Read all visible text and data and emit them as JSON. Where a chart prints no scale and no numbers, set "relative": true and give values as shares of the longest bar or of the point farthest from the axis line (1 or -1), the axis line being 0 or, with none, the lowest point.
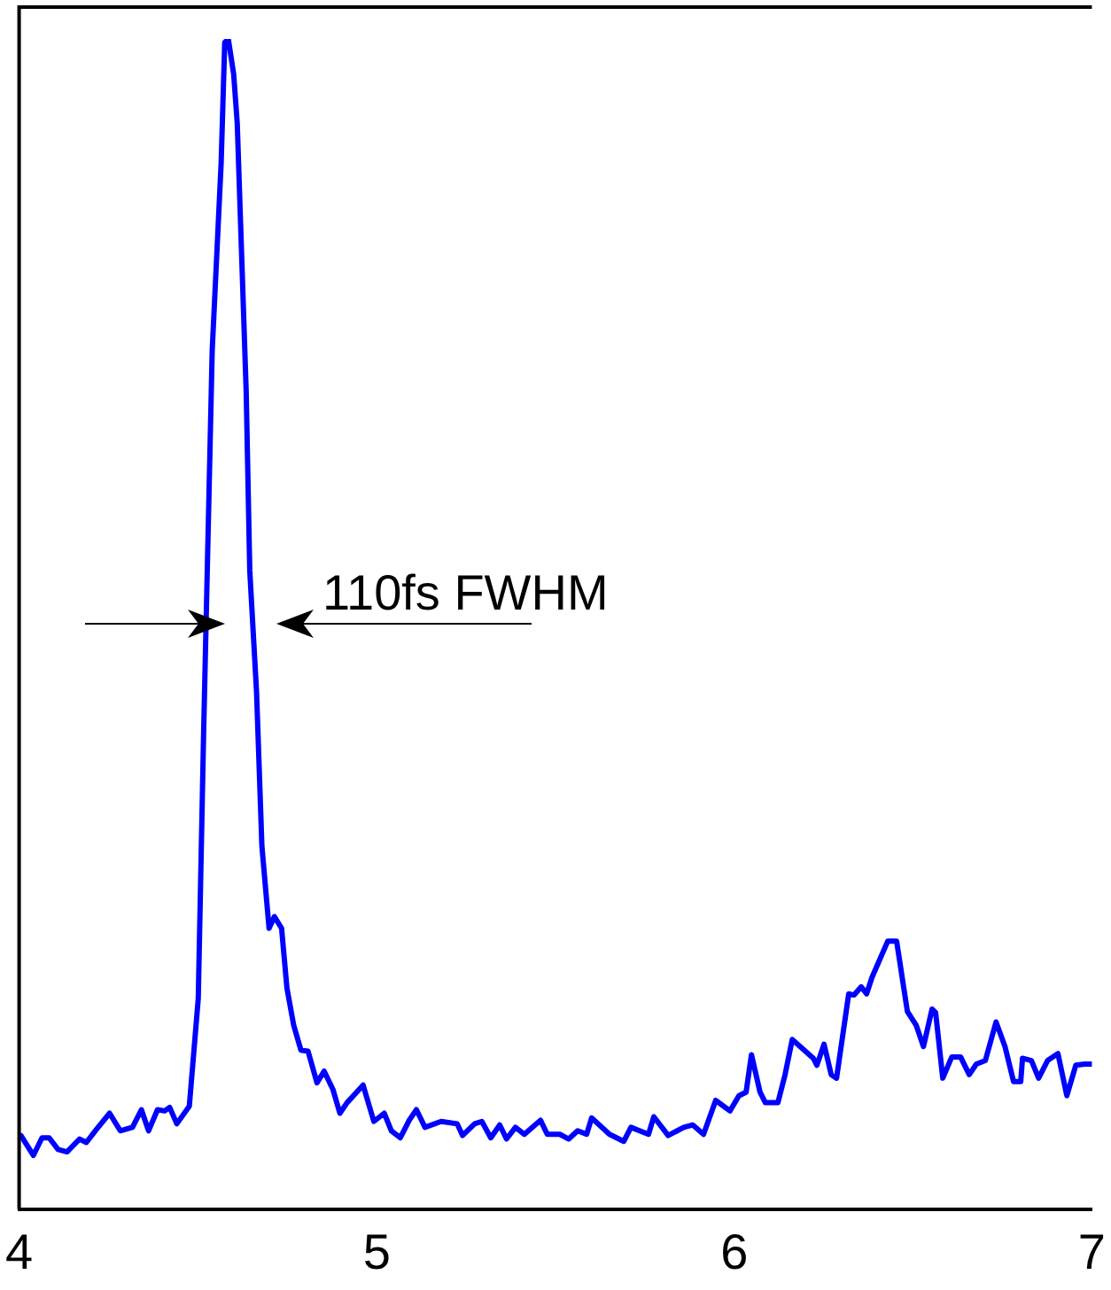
{
  "chart_data": {
    "type": "line",
    "relative": true,
    "xlim": [
      4,
      7
    ],
    "xticks": [
      4,
      5,
      6,
      7
    ],
    "legend": false,
    "annotations": [
      "110fs FWHM"
    ],
    "series": [
      {
        "color": "#0000ff",
        "x": [
          4.005,
          4.04,
          4.064,
          4.084,
          4.109,
          4.134,
          4.169,
          4.188,
          4.213,
          4.253,
          4.283,
          4.317,
          4.342,
          4.362,
          4.387,
          4.407,
          4.421,
          4.441,
          4.476,
          4.501,
          4.516,
          4.54,
          4.565,
          4.575,
          4.585,
          4.6,
          4.61,
          4.635,
          4.645,
          4.664,
          4.679,
          4.699,
          4.714,
          4.734,
          4.749,
          4.768,
          4.788,
          4.808,
          4.833,
          4.853,
          4.878,
          4.897,
          4.917,
          4.962,
          4.992,
          5.021,
          5.041,
          5.066,
          5.091,
          5.111,
          5.135,
          5.18,
          5.225,
          5.24,
          5.274,
          5.294,
          5.319,
          5.344,
          5.363,
          5.388,
          5.413,
          5.458,
          5.477,
          5.512,
          5.537,
          5.562,
          5.587,
          5.601,
          5.651,
          5.691,
          5.711,
          5.76,
          5.775,
          5.815,
          5.859,
          5.884,
          5.914,
          5.948,
          5.988,
          6.013,
          6.033,
          6.048,
          6.072,
          6.087,
          6.122,
          6.142,
          6.162,
          6.221,
          6.231,
          6.251,
          6.271,
          6.286,
          6.32,
          6.335,
          6.355,
          6.37,
          6.385,
          6.429,
          6.454,
          6.484,
          6.509,
          6.529,
          6.553,
          6.563,
          6.583,
          6.608,
          6.633,
          6.657,
          6.677,
          6.702,
          6.732,
          6.757,
          6.781,
          6.801,
          6.806,
          6.831,
          6.851,
          6.876,
          6.905,
          6.93,
          6.955,
          6.98,
          7.0
        ],
        "values": [
          0.063,
          0.046,
          0.061,
          0.061,
          0.051,
          0.049,
          0.06,
          0.057,
          0.067,
          0.082,
          0.067,
          0.07,
          0.085,
          0.067,
          0.085,
          0.084,
          0.087,
          0.073,
          0.088,
          0.18,
          0.407,
          0.734,
          0.894,
          0.997,
          1.0,
          0.97,
          0.928,
          0.699,
          0.546,
          0.442,
          0.31,
          0.24,
          0.25,
          0.24,
          0.189,
          0.157,
          0.136,
          0.135,
          0.108,
          0.118,
          0.102,
          0.082,
          0.091,
          0.106,
          0.075,
          0.082,
          0.067,
          0.061,
          0.076,
          0.085,
          0.07,
          0.075,
          0.073,
          0.063,
          0.073,
          0.075,
          0.061,
          0.072,
          0.06,
          0.07,
          0.064,
          0.076,
          0.064,
          0.064,
          0.06,
          0.067,
          0.064,
          0.078,
          0.064,
          0.058,
          0.07,
          0.064,
          0.079,
          0.063,
          0.07,
          0.072,
          0.064,
          0.093,
          0.084,
          0.097,
          0.1,
          0.132,
          0.1,
          0.091,
          0.091,
          0.115,
          0.145,
          0.129,
          0.123,
          0.141,
          0.115,
          0.112,
          0.184,
          0.183,
          0.19,
          0.184,
          0.198,
          0.229,
          0.229,
          0.169,
          0.157,
          0.139,
          0.171,
          0.168,
          0.112,
          0.13,
          0.13,
          0.115,
          0.124,
          0.127,
          0.16,
          0.139,
          0.109,
          0.109,
          0.129,
          0.127,
          0.112,
          0.127,
          0.133,
          0.097,
          0.123,
          0.124,
          0.124
        ]
      }
    ]
  }
}
